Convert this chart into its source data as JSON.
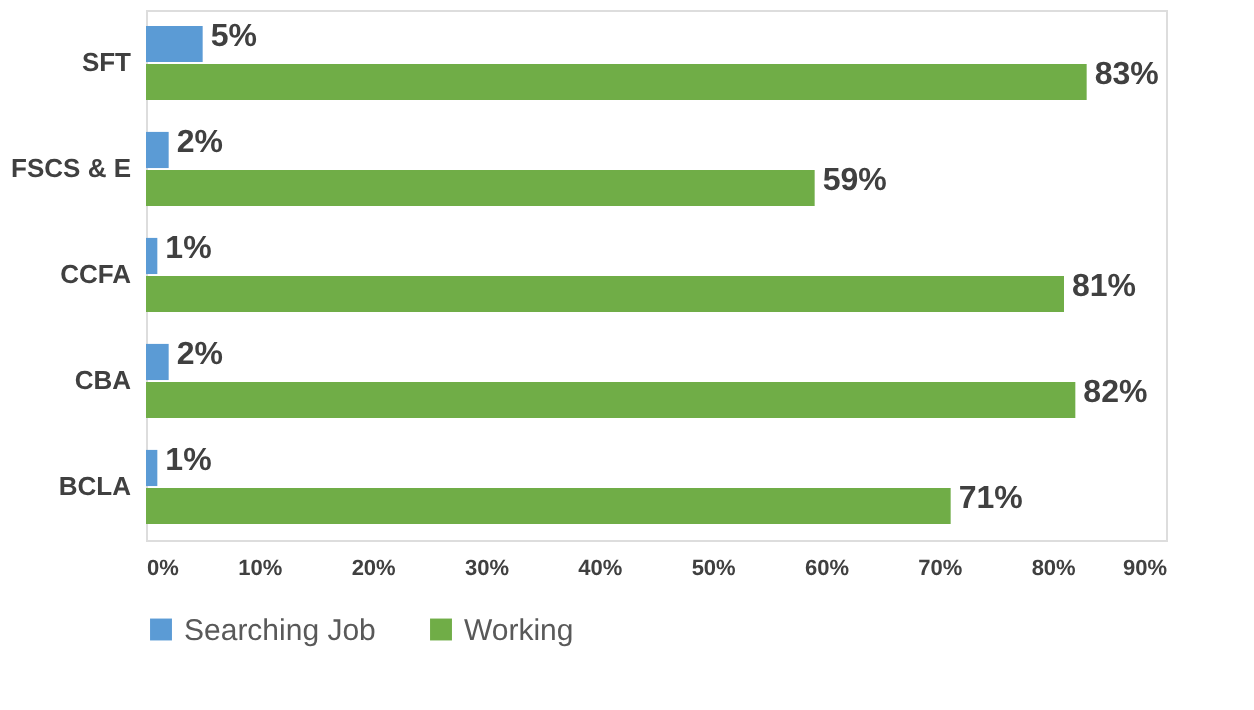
{
  "chart_data": {
    "type": "bar",
    "orientation": "horizontal",
    "categories": [
      "SFT",
      "FSCS & E",
      "CCFA",
      "CBA",
      "BCLA"
    ],
    "series": [
      {
        "name": "Searching Job",
        "color": "#5b9bd5",
        "values": [
          5,
          2,
          1,
          2,
          1
        ],
        "value_labels": [
          "5%",
          "2%",
          "1%",
          "2%",
          "1%"
        ]
      },
      {
        "name": "Working",
        "color": "#70ad47",
        "values": [
          83,
          59,
          81,
          82,
          71
        ],
        "value_labels": [
          "83%",
          "59%",
          "81%",
          "82%",
          "71%"
        ]
      }
    ],
    "xlim": [
      0,
      90
    ],
    "xticks": [
      {
        "value": 0,
        "label": "0%"
      },
      {
        "value": 10,
        "label": "10%"
      },
      {
        "value": 20,
        "label": "20%"
      },
      {
        "value": 30,
        "label": "30%"
      },
      {
        "value": 40,
        "label": "40%"
      },
      {
        "value": 50,
        "label": "50%"
      },
      {
        "value": 60,
        "label": "60%"
      },
      {
        "value": 70,
        "label": "70%"
      },
      {
        "value": 80,
        "label": "80%"
      },
      {
        "value": 90,
        "label": "90%"
      }
    ],
    "grid": false,
    "legend": "bottom"
  }
}
